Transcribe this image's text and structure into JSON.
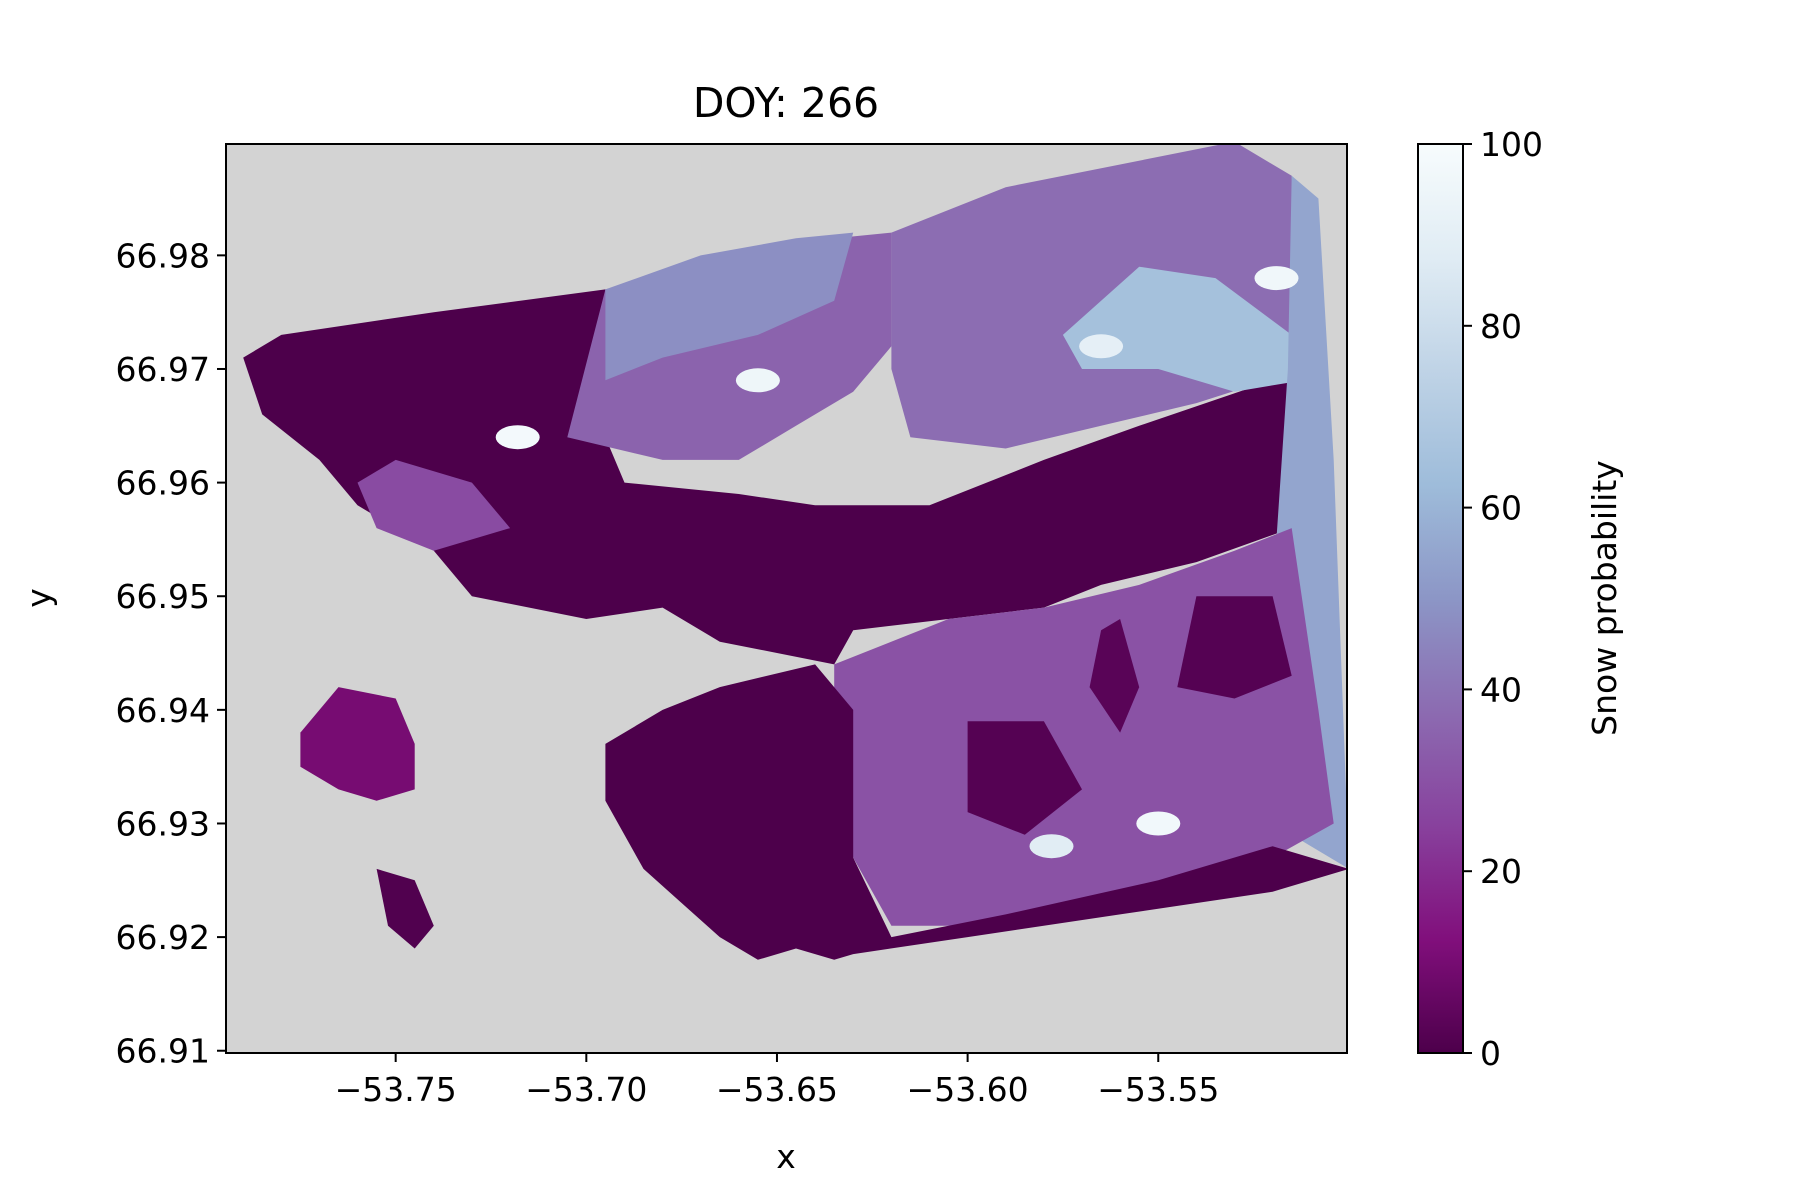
{
  "chart_data": {
    "type": "heatmap",
    "title": "DOY: 266",
    "xlabel": "x",
    "ylabel": "y",
    "xlim": [
      -53.7945,
      -53.5005
    ],
    "ylim": [
      66.9098,
      66.9898
    ],
    "x_ticks": [
      -53.75,
      -53.7,
      -53.65,
      -53.6,
      -53.55
    ],
    "x_tick_labels": [
      "−53.75",
      "−53.70",
      "−53.65",
      "−53.60",
      "−53.55"
    ],
    "y_ticks": [
      66.91,
      66.92,
      66.93,
      66.94,
      66.95,
      66.96,
      66.97,
      66.98
    ],
    "y_tick_labels": [
      "66.91",
      "66.92",
      "66.93",
      "66.94",
      "66.95",
      "66.96",
      "66.97",
      "66.98"
    ],
    "grid": false,
    "nodata_color": "#d3d3d3",
    "colormap": "BuPu_r",
    "colorbar": {
      "label": "Snow probability",
      "range": [
        0,
        100
      ],
      "ticks": [
        0,
        20,
        40,
        60,
        80,
        100
      ],
      "tick_labels": [
        "0",
        "20",
        "40",
        "60",
        "80",
        "100"
      ],
      "position": "right",
      "stops": [
        {
          "value": 0,
          "color": "#4d004b"
        },
        {
          "value": 12.5,
          "color": "#810f7c"
        },
        {
          "value": 25,
          "color": "#88419d"
        },
        {
          "value": 37.5,
          "color": "#8c6bb1"
        },
        {
          "value": 50,
          "color": "#8c96c6"
        },
        {
          "value": 62.5,
          "color": "#9ebcda"
        },
        {
          "value": 75,
          "color": "#bfd3e6"
        },
        {
          "value": 87.5,
          "color": "#e0ecf4"
        },
        {
          "value": 100,
          "color": "#f7fcfd"
        }
      ]
    },
    "regions": [
      {
        "name": "low-north",
        "value": 0,
        "lonlat": [
          [
            -53.79,
            66.971
          ],
          [
            -53.78,
            66.973
          ],
          [
            -53.74,
            66.975
          ],
          [
            -53.695,
            66.977
          ],
          [
            -53.695,
            66.964
          ],
          [
            -53.69,
            66.96
          ],
          [
            -53.66,
            66.959
          ],
          [
            -53.64,
            66.958
          ],
          [
            -53.61,
            66.958
          ],
          [
            -53.58,
            66.962
          ],
          [
            -53.555,
            66.965
          ],
          [
            -53.52,
            66.969
          ],
          [
            -53.512,
            66.97
          ],
          [
            -53.515,
            66.956
          ],
          [
            -53.54,
            66.953
          ],
          [
            -53.565,
            66.951
          ],
          [
            -53.58,
            66.949
          ],
          [
            -53.605,
            66.948
          ],
          [
            -53.63,
            66.947
          ],
          [
            -53.635,
            66.944
          ],
          [
            -53.65,
            66.945
          ],
          [
            -53.665,
            66.946
          ],
          [
            -53.68,
            66.949
          ],
          [
            -53.7,
            66.948
          ],
          [
            -53.73,
            66.95
          ],
          [
            -53.74,
            66.954
          ],
          [
            -53.76,
            66.958
          ],
          [
            -53.77,
            66.962
          ],
          [
            -53.785,
            66.966
          ]
        ]
      },
      {
        "name": "mid-northwest",
        "value": 35,
        "lonlat": [
          [
            -53.705,
            66.964
          ],
          [
            -53.695,
            66.977
          ],
          [
            -53.67,
            66.979
          ],
          [
            -53.65,
            66.981
          ],
          [
            -53.62,
            66.982
          ],
          [
            -53.62,
            66.972
          ],
          [
            -53.63,
            66.968
          ],
          [
            -53.645,
            66.965
          ],
          [
            -53.66,
            66.962
          ],
          [
            -53.68,
            66.962
          ]
        ]
      },
      {
        "name": "light-north",
        "value": 48,
        "lonlat": [
          [
            -53.695,
            66.977
          ],
          [
            -53.67,
            66.98
          ],
          [
            -53.645,
            66.9815
          ],
          [
            -53.63,
            66.982
          ],
          [
            -53.635,
            66.976
          ],
          [
            -53.655,
            66.973
          ],
          [
            -53.68,
            66.971
          ],
          [
            -53.695,
            66.969
          ]
        ]
      },
      {
        "name": "mid-northeast",
        "value": 38,
        "lonlat": [
          [
            -53.62,
            66.982
          ],
          [
            -53.59,
            66.986
          ],
          [
            -53.56,
            66.988
          ],
          [
            -53.53,
            66.99
          ],
          [
            -53.515,
            66.987
          ],
          [
            -53.512,
            66.97
          ],
          [
            -53.54,
            66.967
          ],
          [
            -53.565,
            66.965
          ],
          [
            -53.59,
            66.963
          ],
          [
            -53.615,
            66.964
          ],
          [
            -53.62,
            66.97
          ]
        ]
      },
      {
        "name": "light-northeast",
        "value": 65,
        "lonlat": [
          [
            -53.575,
            66.973
          ],
          [
            -53.555,
            66.979
          ],
          [
            -53.535,
            66.978
          ],
          [
            -53.515,
            66.973
          ],
          [
            -53.512,
            66.969
          ],
          [
            -53.53,
            66.968
          ],
          [
            -53.55,
            66.97
          ],
          [
            -53.57,
            66.97
          ]
        ]
      },
      {
        "name": "edge-east",
        "value": 55,
        "lonlat": [
          [
            -53.515,
            66.987
          ],
          [
            -53.508,
            66.985
          ],
          [
            -53.504,
            66.962
          ],
          [
            -53.5,
            66.926
          ],
          [
            -53.515,
            66.929
          ],
          [
            -53.52,
            66.95
          ],
          [
            -53.516,
            66.97
          ]
        ]
      },
      {
        "name": "mid-west",
        "value": 28,
        "lonlat": [
          [
            -53.75,
            66.962
          ],
          [
            -53.73,
            66.96
          ],
          [
            -53.72,
            66.956
          ],
          [
            -53.74,
            66.954
          ],
          [
            -53.755,
            66.956
          ],
          [
            -53.76,
            66.96
          ]
        ]
      },
      {
        "name": "mid-southeast",
        "value": 30,
        "lonlat": [
          [
            -53.635,
            66.944
          ],
          [
            -53.605,
            66.948
          ],
          [
            -53.58,
            66.949
          ],
          [
            -53.555,
            66.951
          ],
          [
            -53.53,
            66.954
          ],
          [
            -53.515,
            66.956
          ],
          [
            -53.508,
            66.94
          ],
          [
            -53.504,
            66.93
          ],
          [
            -53.52,
            66.927
          ],
          [
            -53.54,
            66.925
          ],
          [
            -53.57,
            66.923
          ],
          [
            -53.595,
            66.921
          ],
          [
            -53.62,
            66.921
          ],
          [
            -53.63,
            66.927
          ],
          [
            -53.635,
            66.935
          ]
        ]
      },
      {
        "name": "low-southeast-a",
        "value": 2,
        "lonlat": [
          [
            -53.54,
            66.95
          ],
          [
            -53.52,
            66.95
          ],
          [
            -53.515,
            66.943
          ],
          [
            -53.53,
            66.941
          ],
          [
            -53.545,
            66.942
          ]
        ]
      },
      {
        "name": "low-southeast-b",
        "value": 2,
        "lonlat": [
          [
            -53.6,
            66.939
          ],
          [
            -53.58,
            66.939
          ],
          [
            -53.57,
            66.933
          ],
          [
            -53.585,
            66.929
          ],
          [
            -53.6,
            66.931
          ]
        ]
      },
      {
        "name": "low-southeast-c",
        "value": 3,
        "lonlat": [
          [
            -53.565,
            66.947
          ],
          [
            -53.56,
            66.948
          ],
          [
            -53.555,
            66.942
          ],
          [
            -53.56,
            66.938
          ],
          [
            -53.568,
            66.942
          ]
        ]
      },
      {
        "name": "low-south",
        "value": 0,
        "lonlat": [
          [
            -53.665,
            66.942
          ],
          [
            -53.64,
            66.944
          ],
          [
            -53.63,
            66.94
          ],
          [
            -53.63,
            66.927
          ],
          [
            -53.62,
            66.92
          ],
          [
            -53.59,
            66.922
          ],
          [
            -53.55,
            66.925
          ],
          [
            -53.52,
            66.928
          ],
          [
            -53.5,
            66.926
          ],
          [
            -53.52,
            66.924
          ],
          [
            -53.56,
            66.922
          ],
          [
            -53.6,
            66.92
          ],
          [
            -53.63,
            66.9185
          ],
          [
            -53.635,
            66.918
          ],
          [
            -53.645,
            66.919
          ],
          [
            -53.655,
            66.918
          ],
          [
            -53.665,
            66.92
          ],
          [
            -53.675,
            66.923
          ],
          [
            -53.685,
            66.926
          ],
          [
            -53.695,
            66.932
          ],
          [
            -53.695,
            66.937
          ],
          [
            -53.68,
            66.94
          ]
        ]
      },
      {
        "name": "island-west",
        "value": 10,
        "lonlat": [
          [
            -53.775,
            66.938
          ],
          [
            -53.765,
            66.942
          ],
          [
            -53.75,
            66.941
          ],
          [
            -53.745,
            66.937
          ],
          [
            -53.745,
            66.933
          ],
          [
            -53.755,
            66.932
          ],
          [
            -53.765,
            66.933
          ],
          [
            -53.775,
            66.935
          ]
        ]
      },
      {
        "name": "island-south",
        "value": 1,
        "lonlat": [
          [
            -53.755,
            66.926
          ],
          [
            -53.745,
            66.925
          ],
          [
            -53.74,
            66.921
          ],
          [
            -53.745,
            66.919
          ],
          [
            -53.752,
            66.921
          ]
        ]
      }
    ],
    "snow_spots": [
      {
        "value": 98,
        "lonlat": [
          -53.718,
          66.964
        ]
      },
      {
        "value": 95,
        "lonlat": [
          -53.655,
          66.969
        ]
      },
      {
        "value": 97,
        "lonlat": [
          -53.55,
          66.93
        ]
      },
      {
        "value": 96,
        "lonlat": [
          -53.519,
          66.978
        ]
      },
      {
        "value": 90,
        "lonlat": [
          -53.565,
          66.972
        ]
      },
      {
        "value": 88,
        "lonlat": [
          -53.578,
          66.928
        ]
      }
    ]
  }
}
